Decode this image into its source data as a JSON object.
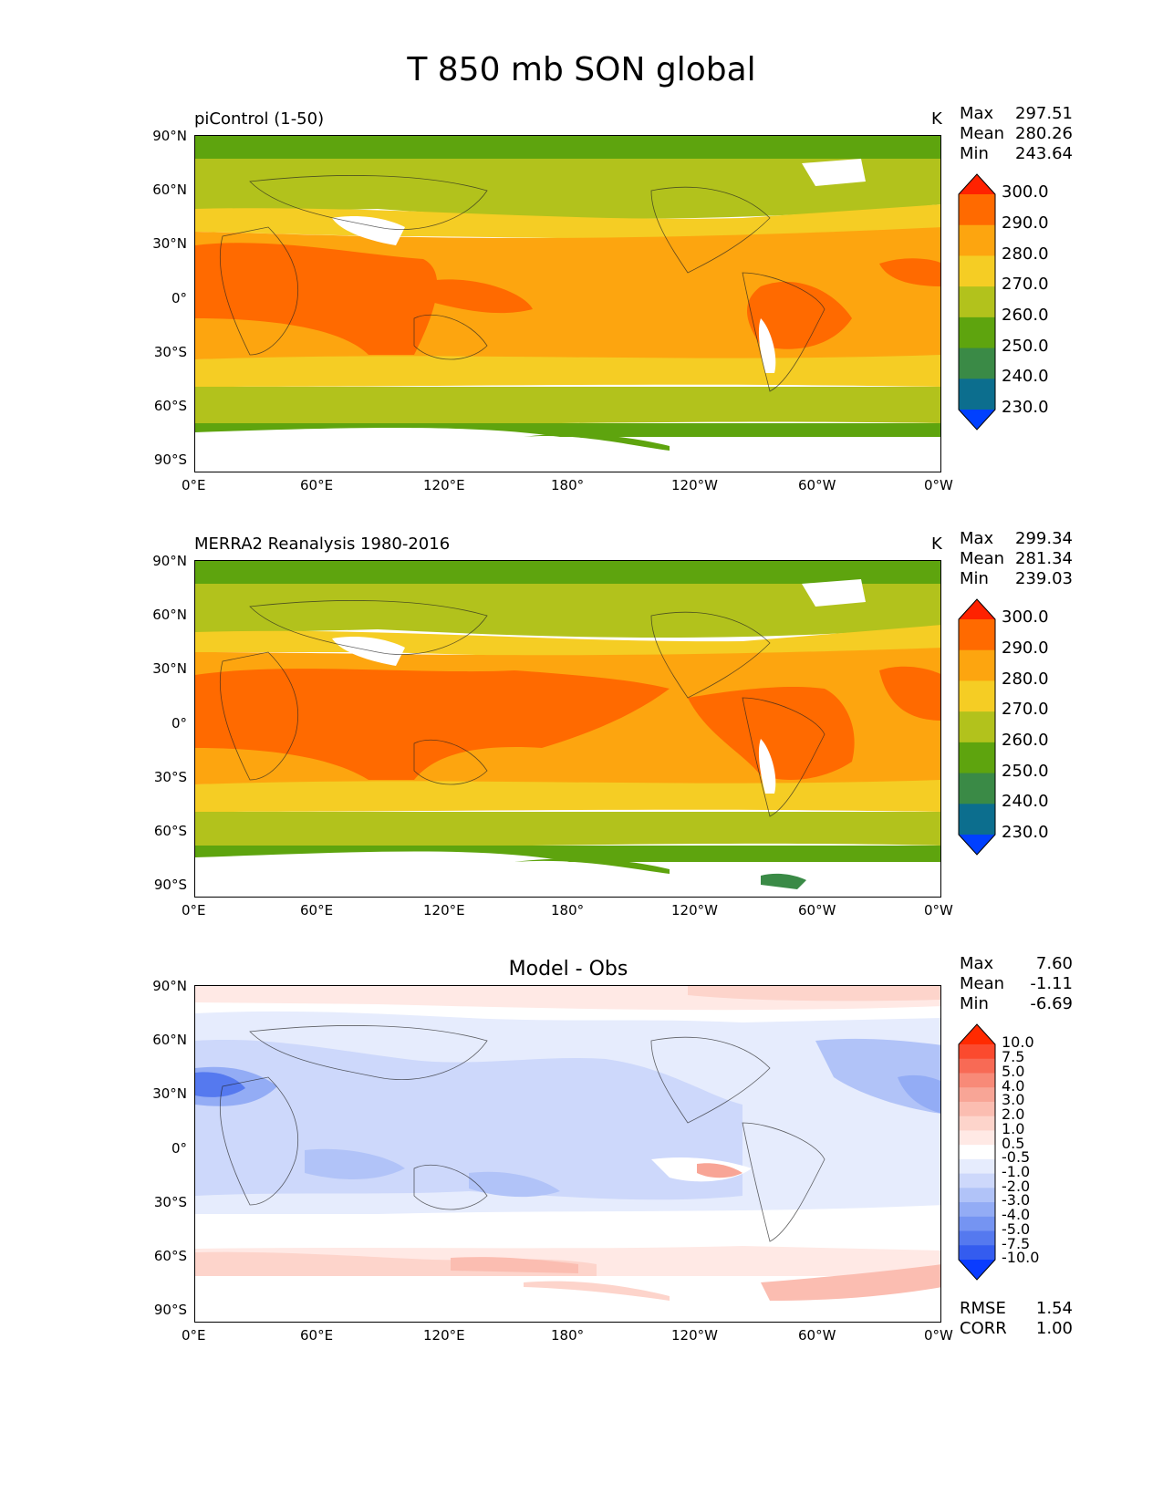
{
  "title": "T 850 mb SON global",
  "chart_data": [
    {
      "type": "heatmap",
      "title": "piControl (1-50)",
      "units": "K",
      "stats": {
        "max": "297.51",
        "mean": "280.26",
        "min": "243.64"
      },
      "stat_labels": {
        "max": "Max",
        "mean": "Mean",
        "min": "Min"
      },
      "xticks": [
        "0°E",
        "60°E",
        "120°E",
        "180°",
        "120°W",
        "60°W",
        "0°W"
      ],
      "yticks": [
        "90°N",
        "60°N",
        "30°N",
        "0°",
        "30°S",
        "60°S",
        "90°S"
      ],
      "xlim": [
        0,
        360
      ],
      "ylim": [
        -90,
        90
      ],
      "colorbar": {
        "labels": [
          "300.0",
          "290.0",
          "280.0",
          "270.0",
          "260.0",
          "250.0",
          "240.0",
          "230.0"
        ],
        "colors": [
          "#ff2200",
          "#ff6a00",
          "#fda50f",
          "#f5cd24",
          "#b2c21c",
          "#5ea40e",
          "#3a8a46",
          "#0c6e8e",
          "#0040ff"
        ]
      }
    },
    {
      "type": "heatmap",
      "title": "MERRA2 Reanalysis 1980-2016",
      "units": "K",
      "stats": {
        "max": "299.34",
        "mean": "281.34",
        "min": "239.03"
      },
      "stat_labels": {
        "max": "Max",
        "mean": "Mean",
        "min": "Min"
      },
      "xticks": [
        "0°E",
        "60°E",
        "120°E",
        "180°",
        "120°W",
        "60°W",
        "0°W"
      ],
      "yticks": [
        "90°N",
        "60°N",
        "30°N",
        "0°",
        "30°S",
        "60°S",
        "90°S"
      ],
      "xlim": [
        0,
        360
      ],
      "ylim": [
        -90,
        90
      ],
      "colorbar": {
        "labels": [
          "300.0",
          "290.0",
          "280.0",
          "270.0",
          "260.0",
          "250.0",
          "240.0",
          "230.0"
        ],
        "colors": [
          "#ff2200",
          "#ff6a00",
          "#fda50f",
          "#f5cd24",
          "#b2c21c",
          "#5ea40e",
          "#3a8a46",
          "#0c6e8e",
          "#0040ff"
        ]
      }
    },
    {
      "type": "heatmap",
      "title": "Model - Obs",
      "stats": {
        "max": "7.60",
        "mean": "-1.11",
        "min": "-6.69"
      },
      "stat_labels": {
        "max": "Max",
        "mean": "Mean",
        "min": "Min"
      },
      "extra_stats": {
        "rmse_label": "RMSE",
        "rmse": "1.54",
        "corr_label": "CORR",
        "corr": "1.00"
      },
      "xticks": [
        "0°E",
        "60°E",
        "120°E",
        "180°",
        "120°W",
        "60°W",
        "0°W"
      ],
      "yticks": [
        "90°N",
        "60°N",
        "30°N",
        "0°",
        "30°S",
        "60°S",
        "90°S"
      ],
      "xlim": [
        0,
        360
      ],
      "ylim": [
        -90,
        90
      ],
      "colorbar": {
        "labels": [
          "10.0",
          "7.5",
          "5.0",
          "4.0",
          "3.0",
          "2.0",
          "1.0",
          "0.5",
          "-0.5",
          "-1.0",
          "-2.0",
          "-3.0",
          "-4.0",
          "-5.0",
          "-7.5",
          "-10.0"
        ],
        "colors": [
          "#ff2a00",
          "#fb4a2e",
          "#f86a55",
          "#f88a78",
          "#f8a596",
          "#fbbdb1",
          "#fdd4cb",
          "#ffe9e5",
          "#ffffff",
          "#e6ecfd",
          "#cdd8fb",
          "#b1c3f8",
          "#93acf5",
          "#7594f2",
          "#5579ef",
          "#345cef",
          "#0a3cff"
        ]
      }
    }
  ]
}
